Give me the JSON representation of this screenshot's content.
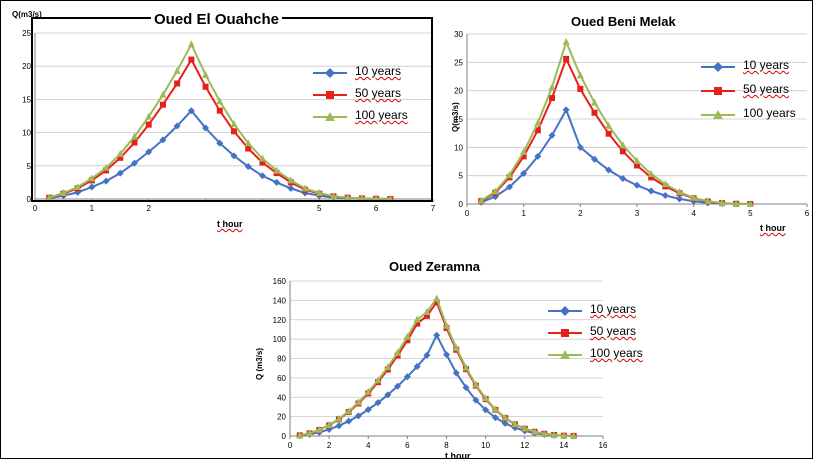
{
  "chart_data": [
    {
      "type": "line",
      "title": "Oued El Ouahche",
      "ylabel": "Q(m3/s)",
      "xlabel": "t hour",
      "xlim": [
        0,
        7
      ],
      "ylim": [
        0,
        25
      ],
      "xticks": [
        "0",
        "1",
        "2",
        "",
        "",
        "5",
        "6",
        "7"
      ],
      "yticks": [
        0,
        5,
        10,
        15,
        20,
        25
      ],
      "grid": true,
      "legend": "right",
      "x": [
        0.25,
        0.5,
        0.75,
        1.0,
        1.25,
        1.5,
        1.75,
        2.0,
        2.25,
        2.5,
        2.75,
        3.0,
        3.25,
        3.5,
        3.75,
        4.0,
        4.25,
        4.5,
        4.75,
        5.0,
        5.25,
        5.5,
        5.75,
        6.0,
        6.25
      ],
      "series": [
        {
          "name": "10 years",
          "color": "#4472c4",
          "marker": "diamond",
          "values": [
            0.1,
            0.5,
            1.0,
            1.8,
            2.7,
            3.9,
            5.4,
            7.1,
            8.9,
            11.0,
            13.3,
            10.7,
            8.4,
            6.5,
            4.9,
            3.5,
            2.5,
            1.6,
            0.9,
            0.5,
            0.2,
            0.1,
            0.05,
            0.02,
            0.0
          ]
        },
        {
          "name": "50 years",
          "color": "#e8201c",
          "marker": "square",
          "values": [
            0.2,
            0.8,
            1.6,
            2.8,
            4.3,
            6.2,
            8.5,
            11.2,
            14.2,
            17.4,
            21.0,
            16.9,
            13.3,
            10.2,
            7.6,
            5.5,
            3.9,
            2.5,
            1.4,
            0.8,
            0.4,
            0.2,
            0.08,
            0.03,
            0.0
          ]
        },
        {
          "name": "100 years",
          "color": "#9bbb59",
          "marker": "triangle",
          "values": [
            0.2,
            0.9,
            1.8,
            3.1,
            4.7,
            6.8,
            9.4,
            12.4,
            15.7,
            19.3,
            23.3,
            18.7,
            14.7,
            11.3,
            8.4,
            6.1,
            4.3,
            2.8,
            1.6,
            0.9,
            0.4,
            0.2,
            0.1,
            0.04,
            0.0
          ]
        }
      ]
    },
    {
      "type": "line",
      "title": "Oued Beni Melak",
      "ylabel": "Q(m3/s)",
      "xlabel": "t hour",
      "xlim": [
        0,
        6
      ],
      "ylim": [
        0,
        30
      ],
      "xticks": [
        "0",
        "1",
        "2",
        "3",
        "4",
        "5",
        "6"
      ],
      "yticks": [
        0,
        5,
        10,
        15,
        20,
        25,
        30
      ],
      "grid": true,
      "legend": "right",
      "x": [
        0.25,
        0.5,
        0.75,
        1.0,
        1.25,
        1.5,
        1.75,
        2.0,
        2.25,
        2.5,
        2.75,
        3.0,
        3.25,
        3.5,
        3.75,
        4.0,
        4.25,
        4.5,
        4.75,
        5.0
      ],
      "series": [
        {
          "name": "10 years",
          "color": "#4472c4",
          "marker": "diamond",
          "values": [
            0.3,
            1.3,
            3.0,
            5.4,
            8.4,
            12.1,
            16.6,
            10.0,
            7.9,
            6.0,
            4.5,
            3.3,
            2.3,
            1.5,
            0.9,
            0.5,
            0.2,
            0.08,
            0.02,
            0.0
          ]
        },
        {
          "name": "50 years",
          "color": "#e8201c",
          "marker": "square",
          "values": [
            0.5,
            2.0,
            4.7,
            8.4,
            13.0,
            18.7,
            25.6,
            20.3,
            16.1,
            12.4,
            9.3,
            6.8,
            4.7,
            3.1,
            1.9,
            1.0,
            0.45,
            0.15,
            0.04,
            0.0
          ]
        },
        {
          "name": "100 years",
          "color": "#9bbb59",
          "marker": "triangle",
          "values": [
            0.6,
            2.2,
            5.1,
            9.2,
            14.3,
            20.6,
            28.6,
            22.7,
            17.9,
            13.8,
            10.4,
            7.6,
            5.3,
            3.5,
            2.1,
            1.1,
            0.5,
            0.17,
            0.05,
            0.0
          ]
        }
      ]
    },
    {
      "type": "line",
      "title": "Oued Zeramna",
      "ylabel": "Q (m3/s)",
      "xlabel": "t hour",
      "xlim": [
        0,
        16
      ],
      "ylim": [
        0,
        160
      ],
      "xticks": [
        "0",
        "2",
        "4",
        "6",
        "8",
        "10",
        "12",
        "14",
        "16"
      ],
      "yticks": [
        0,
        20,
        40,
        60,
        80,
        100,
        120,
        140,
        160
      ],
      "grid": true,
      "legend": "right",
      "x": [
        0.5,
        1.0,
        1.5,
        2.0,
        2.5,
        3.0,
        3.5,
        4.0,
        4.5,
        5.0,
        5.5,
        6.0,
        6.5,
        7.0,
        7.5,
        8.0,
        8.5,
        9.0,
        9.5,
        10.0,
        10.5,
        11.0,
        11.5,
        12.0,
        12.5,
        13.0,
        13.5,
        14.0,
        14.5
      ],
      "series": [
        {
          "name": "10 years",
          "color": "#4472c4",
          "marker": "diamond",
          "values": [
            0.4,
            1.7,
            3.8,
            6.8,
            10.6,
            15.3,
            20.8,
            27.2,
            34.4,
            42.5,
            51.4,
            61.2,
            71.8,
            83.3,
            104.0,
            84.0,
            65.0,
            50.0,
            37.0,
            27.0,
            19.0,
            13.0,
            8.5,
            5.3,
            3.0,
            1.5,
            0.7,
            0.2,
            0.05
          ]
        },
        {
          "name": "50 years",
          "color": "#e8201c",
          "marker": "square",
          "values": [
            0.7,
            2.7,
            6.2,
            11.0,
            17.2,
            24.7,
            33.6,
            43.9,
            55.6,
            68.6,
            83.0,
            98.8,
            116.0,
            124.0,
            138.0,
            111.5,
            89.0,
            69.0,
            52.0,
            38.0,
            27.0,
            18.5,
            12.0,
            7.5,
            4.3,
            2.3,
            1.0,
            0.35,
            0.08
          ]
        },
        {
          "name": "100 years",
          "color": "#9bbb59",
          "marker": "triangle",
          "values": [
            0.7,
            2.8,
            6.4,
            11.4,
            17.8,
            25.6,
            34.8,
            45.5,
            57.6,
            71.1,
            86.0,
            102.4,
            120.2,
            128.0,
            142.0,
            114.0,
            91.0,
            70.5,
            53.0,
            39.0,
            27.5,
            19.0,
            12.3,
            7.7,
            4.4,
            2.4,
            1.0,
            0.35,
            0.08
          ]
        }
      ]
    }
  ]
}
